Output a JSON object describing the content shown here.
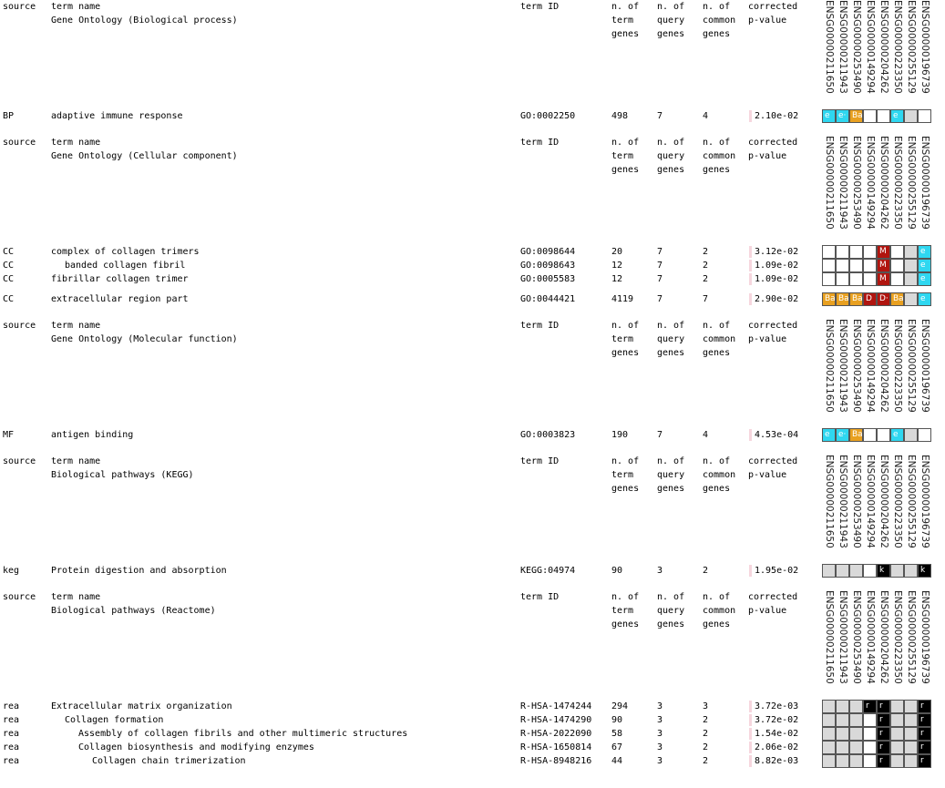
{
  "genes": [
    "ENSG00000211650",
    "ENSG00000211943",
    "ENSG00000253490",
    "ENSG00000149294",
    "ENSG00000204262",
    "ENSG00000223350",
    "ENSG00000255129",
    "ENSG00000196739"
  ],
  "header": {
    "source": "source",
    "term_name": "term name",
    "term_id": "term ID",
    "n_term_genes": "n. of term genes",
    "n_query_genes": "n. of query genes",
    "n_common_genes": "n. of common genes",
    "pvalue": "corrected p-value"
  },
  "colors": {
    "white": "#ffffff",
    "grey": "#d9d9d9",
    "cyan": "#2fd7f0",
    "orange": "#e8a020",
    "darkred": "#b0150f",
    "black": "#000000",
    "pbar": "#f6d6de"
  },
  "sections": [
    {
      "title": "Gene Ontology (Biological process)",
      "rows": [
        {
          "source": "BP",
          "name": "adaptive immune response",
          "indent": 0,
          "id": "GO:0002250",
          "nt": "498",
          "nq": "7",
          "nc": "4",
          "pv": "2.10e-02",
          "cells": [
            [
              "cyan",
              "e"
            ],
            [
              "cyan",
              "e·"
            ],
            [
              "orange",
              "Ba"
            ],
            [
              "white",
              ""
            ],
            [
              "white",
              ""
            ],
            [
              "cyan",
              "e"
            ],
            [
              "grey",
              ""
            ],
            [
              "white",
              ""
            ]
          ]
        }
      ]
    },
    {
      "title": "Gene Ontology (Cellular component)",
      "rows": [
        {
          "source": "CC",
          "name": "complex of collagen trimers",
          "indent": 0,
          "id": "GO:0098644",
          "nt": "20",
          "nq": "7",
          "nc": "2",
          "pv": "3.12e-02",
          "cells": [
            [
              "white",
              ""
            ],
            [
              "white",
              ""
            ],
            [
              "white",
              ""
            ],
            [
              "white",
              ""
            ],
            [
              "darkred",
              "M"
            ],
            [
              "white",
              ""
            ],
            [
              "grey",
              ""
            ],
            [
              "cyan",
              "e"
            ]
          ]
        },
        {
          "source": "CC",
          "name": "banded collagen fibril",
          "indent": 1,
          "id": "GO:0098643",
          "nt": "12",
          "nq": "7",
          "nc": "2",
          "pv": "1.09e-02",
          "cells": [
            [
              "white",
              ""
            ],
            [
              "white",
              ""
            ],
            [
              "white",
              ""
            ],
            [
              "white",
              ""
            ],
            [
              "darkred",
              "M"
            ],
            [
              "white",
              ""
            ],
            [
              "grey",
              ""
            ],
            [
              "cyan",
              "e"
            ]
          ]
        },
        {
          "source": "CC",
          "name": "fibrillar collagen trimer",
          "indent": 0,
          "id": "GO:0005583",
          "nt": "12",
          "nq": "7",
          "nc": "2",
          "pv": "1.09e-02",
          "cells": [
            [
              "white",
              ""
            ],
            [
              "white",
              ""
            ],
            [
              "white",
              ""
            ],
            [
              "white",
              ""
            ],
            [
              "darkred",
              "M"
            ],
            [
              "white",
              ""
            ],
            [
              "grey",
              ""
            ],
            [
              "cyan",
              "e"
            ]
          ]
        },
        {
          "source": "CC",
          "name": "extracellular region part",
          "indent": 0,
          "id": "GO:0044421",
          "nt": "4119",
          "nq": "7",
          "nc": "7",
          "pv": "2.90e-02",
          "cells": [
            [
              "orange",
              "Ba"
            ],
            [
              "orange",
              "Ba"
            ],
            [
              "orange",
              "Ba"
            ],
            [
              "darkred",
              "D"
            ],
            [
              "darkred",
              "D·"
            ],
            [
              "orange",
              "Ba"
            ],
            [
              "grey",
              ""
            ],
            [
              "cyan",
              "e"
            ]
          ]
        }
      ]
    },
    {
      "title": "Gene Ontology (Molecular function)",
      "rows": [
        {
          "source": "MF",
          "name": "antigen binding",
          "indent": 0,
          "id": "GO:0003823",
          "nt": "190",
          "nq": "7",
          "nc": "4",
          "pv": "4.53e-04",
          "cells": [
            [
              "cyan",
              "e"
            ],
            [
              "cyan",
              "e·"
            ],
            [
              "orange",
              "Ba"
            ],
            [
              "white",
              ""
            ],
            [
              "white",
              ""
            ],
            [
              "cyan",
              "e"
            ],
            [
              "grey",
              ""
            ],
            [
              "white",
              ""
            ]
          ]
        }
      ]
    },
    {
      "title": "Biological pathways (KEGG)",
      "rows": [
        {
          "source": "keg",
          "name": "Protein digestion and absorption",
          "indent": 0,
          "id": "KEGG:04974",
          "nt": "90",
          "nq": "3",
          "nc": "2",
          "pv": "1.95e-02",
          "cells": [
            [
              "grey",
              ""
            ],
            [
              "grey",
              ""
            ],
            [
              "grey",
              ""
            ],
            [
              "white",
              ""
            ],
            [
              "black",
              "k"
            ],
            [
              "grey",
              ""
            ],
            [
              "grey",
              ""
            ],
            [
              "black",
              "k"
            ]
          ]
        }
      ]
    },
    {
      "title": "Biological pathways (Reactome)",
      "rows": [
        {
          "source": "rea",
          "name": "Extracellular matrix organization",
          "indent": 0,
          "id": "R-HSA-1474244",
          "nt": "294",
          "nq": "3",
          "nc": "3",
          "pv": "3.72e-03",
          "cells": [
            [
              "grey",
              ""
            ],
            [
              "grey",
              ""
            ],
            [
              "grey",
              ""
            ],
            [
              "black",
              "r"
            ],
            [
              "black",
              "r"
            ],
            [
              "grey",
              ""
            ],
            [
              "grey",
              ""
            ],
            [
              "black",
              "r"
            ]
          ]
        },
        {
          "source": "rea",
          "name": "Collagen formation",
          "indent": 1,
          "id": "R-HSA-1474290",
          "nt": "90",
          "nq": "3",
          "nc": "2",
          "pv": "3.72e-02",
          "cells": [
            [
              "grey",
              ""
            ],
            [
              "grey",
              ""
            ],
            [
              "grey",
              ""
            ],
            [
              "white",
              ""
            ],
            [
              "black",
              "r"
            ],
            [
              "grey",
              ""
            ],
            [
              "grey",
              ""
            ],
            [
              "black",
              "r"
            ]
          ]
        },
        {
          "source": "rea",
          "name": "Assembly of collagen fibrils and other multimeric structures",
          "indent": 2,
          "id": "R-HSA-2022090",
          "nt": "58",
          "nq": "3",
          "nc": "2",
          "pv": "1.54e-02",
          "cells": [
            [
              "grey",
              ""
            ],
            [
              "grey",
              ""
            ],
            [
              "grey",
              ""
            ],
            [
              "white",
              ""
            ],
            [
              "black",
              "r"
            ],
            [
              "grey",
              ""
            ],
            [
              "grey",
              ""
            ],
            [
              "black",
              "r"
            ]
          ]
        },
        {
          "source": "rea",
          "name": "Collagen biosynthesis and modifying enzymes",
          "indent": 2,
          "id": "R-HSA-1650814",
          "nt": "67",
          "nq": "3",
          "nc": "2",
          "pv": "2.06e-02",
          "cells": [
            [
              "grey",
              ""
            ],
            [
              "grey",
              ""
            ],
            [
              "grey",
              ""
            ],
            [
              "white",
              ""
            ],
            [
              "black",
              "r"
            ],
            [
              "grey",
              ""
            ],
            [
              "grey",
              ""
            ],
            [
              "black",
              "r"
            ]
          ]
        },
        {
          "source": "rea",
          "name": "Collagen chain trimerization",
          "indent": 3,
          "id": "R-HSA-8948216",
          "nt": "44",
          "nq": "3",
          "nc": "2",
          "pv": "8.82e-03",
          "cells": [
            [
              "grey",
              ""
            ],
            [
              "grey",
              ""
            ],
            [
              "grey",
              ""
            ],
            [
              "white",
              ""
            ],
            [
              "black",
              "r"
            ],
            [
              "grey",
              ""
            ],
            [
              "grey",
              ""
            ],
            [
              "black",
              "r"
            ]
          ]
        }
      ]
    }
  ]
}
